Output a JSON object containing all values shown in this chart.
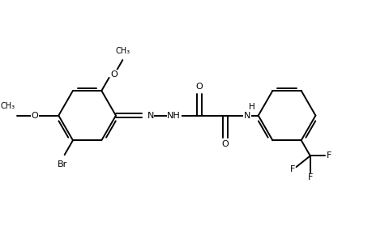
{
  "background_color": "#ffffff",
  "line_color": "#000000",
  "line_width": 1.4,
  "figsize": [
    4.6,
    3.0
  ],
  "dpi": 100,
  "xlim": [
    0,
    9.2
  ],
  "ylim": [
    0,
    6.0
  ]
}
